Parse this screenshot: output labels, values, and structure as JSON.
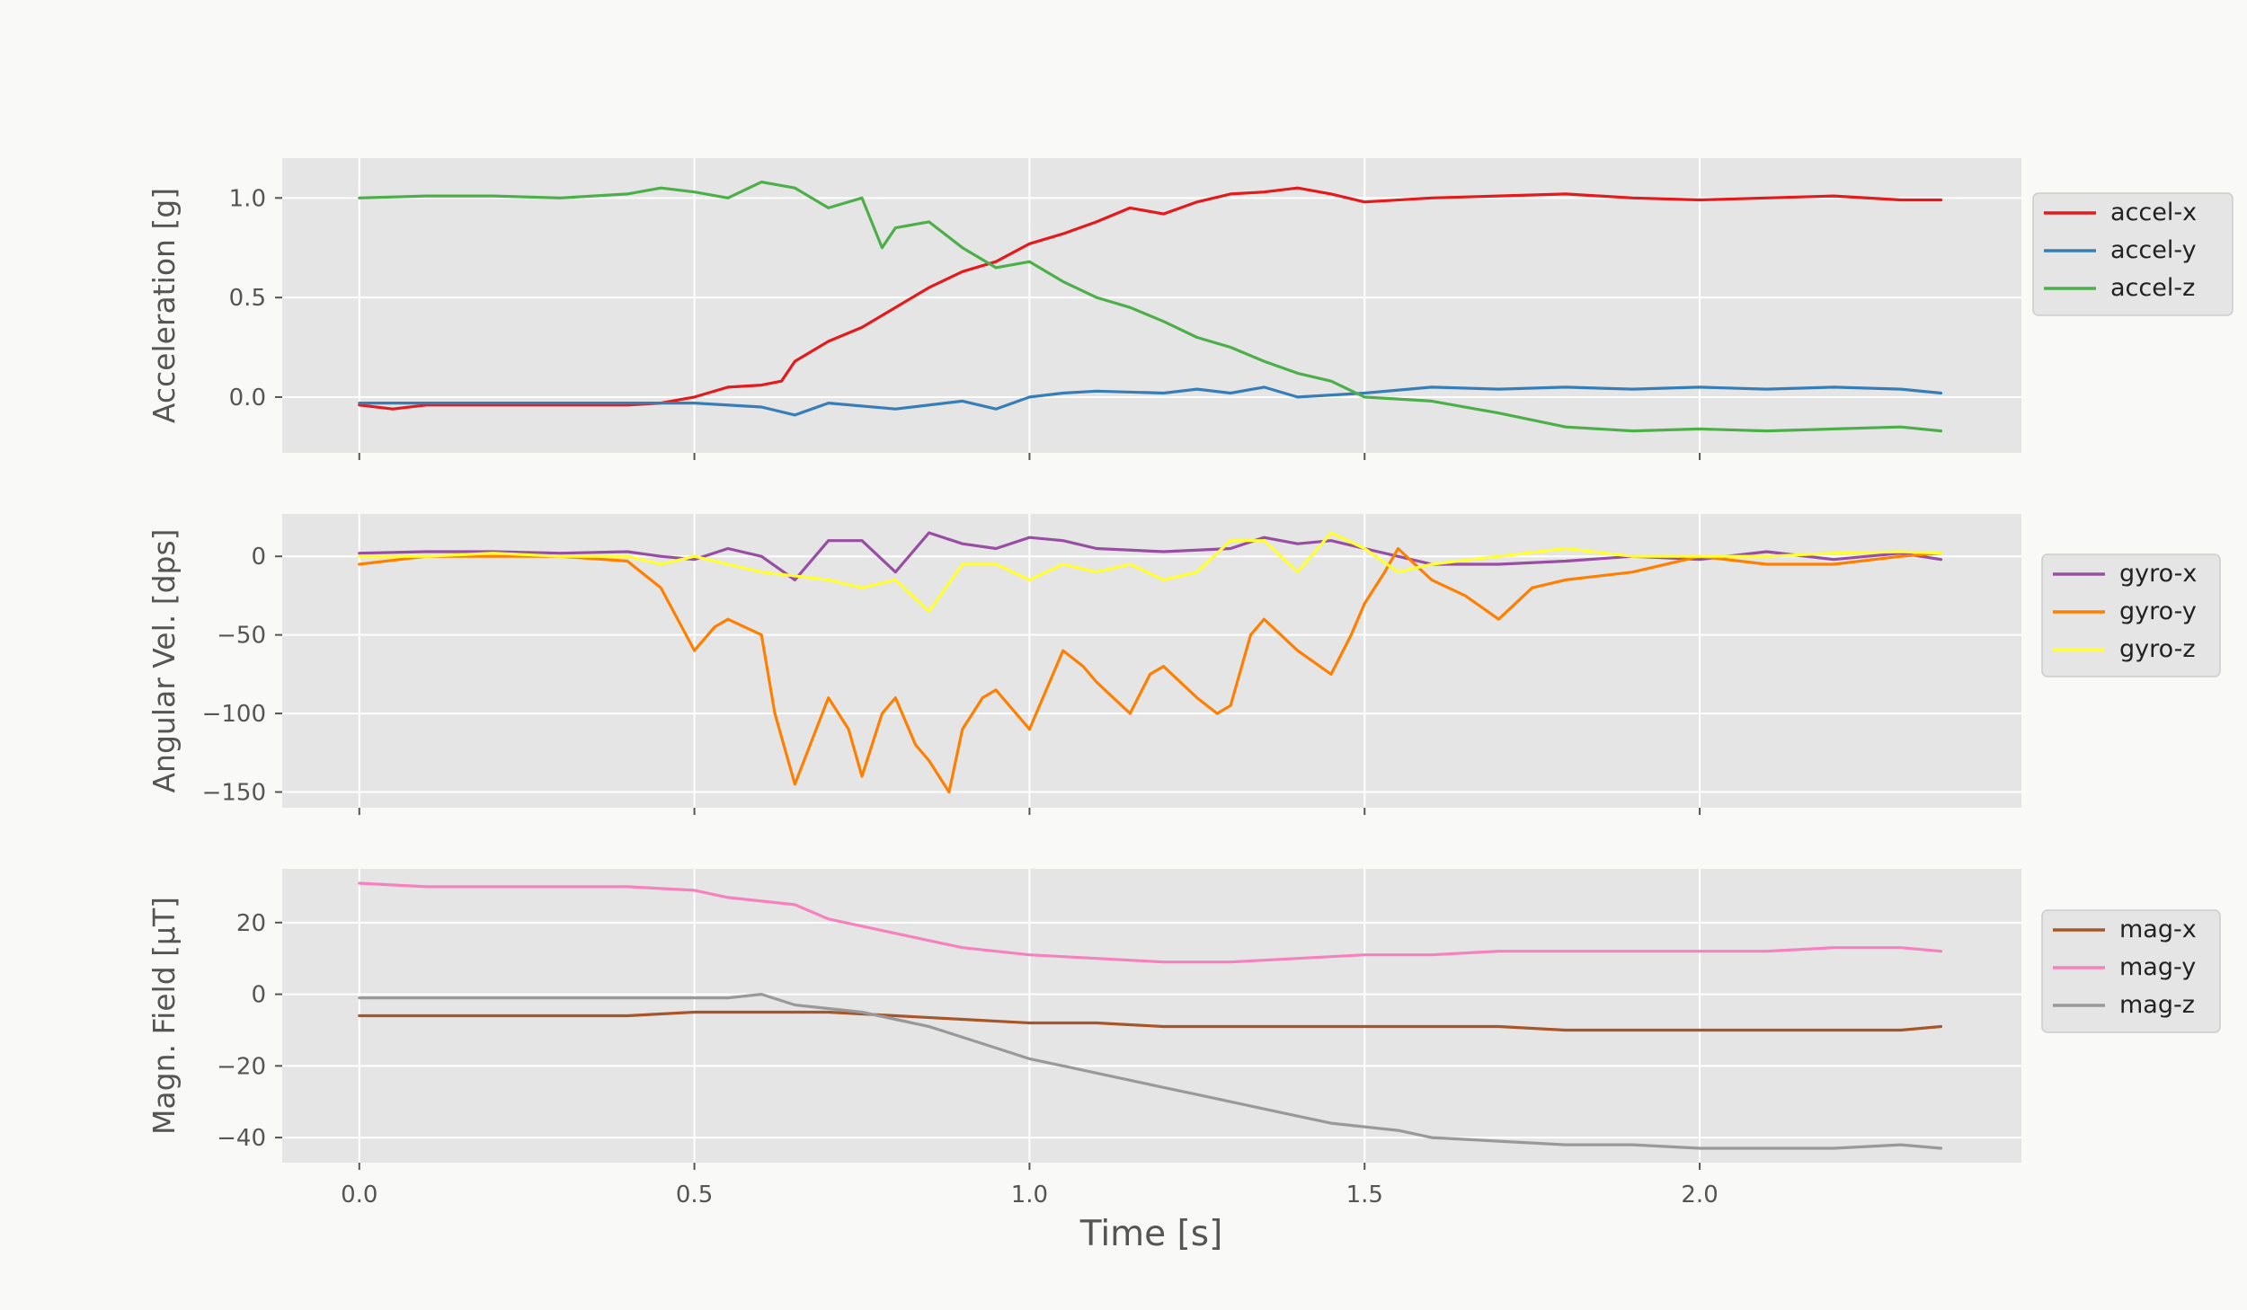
{
  "figure": {
    "background": "#f9faf8",
    "panel_background": "#e5e5e5",
    "grid_color": "#ffffff"
  },
  "chart_data": [
    {
      "type": "line",
      "ylabel": "Acceleration [g]",
      "xlim": [
        -0.115,
        2.48
      ],
      "ylim": [
        -0.28,
        1.2
      ],
      "xticks": [
        0.0,
        0.5,
        1.0,
        1.5,
        2.0
      ],
      "xtick_labels": [
        "0.0",
        "0.5",
        "1.0",
        "1.5",
        "2.0"
      ],
      "yticks": [
        0.0,
        0.5,
        1.0
      ],
      "ytick_labels": [
        "0.0",
        "0.5",
        "1.0"
      ],
      "grid": true,
      "legend_position": "right",
      "series": [
        {
          "name": "accel-x",
          "color": "#e41a1c",
          "x": [
            0.0,
            0.05,
            0.1,
            0.2,
            0.3,
            0.4,
            0.45,
            0.5,
            0.55,
            0.6,
            0.63,
            0.65,
            0.7,
            0.75,
            0.8,
            0.85,
            0.9,
            0.95,
            1.0,
            1.05,
            1.1,
            1.15,
            1.2,
            1.25,
            1.3,
            1.35,
            1.4,
            1.45,
            1.5,
            1.6,
            1.7,
            1.8,
            1.9,
            2.0,
            2.1,
            2.2,
            2.3,
            2.36
          ],
          "y": [
            -0.04,
            -0.06,
            -0.04,
            -0.04,
            -0.04,
            -0.04,
            -0.03,
            0.0,
            0.05,
            0.06,
            0.08,
            0.18,
            0.28,
            0.35,
            0.45,
            0.55,
            0.63,
            0.68,
            0.77,
            0.82,
            0.88,
            0.95,
            0.92,
            0.98,
            1.02,
            1.03,
            1.05,
            1.02,
            0.98,
            1.0,
            1.01,
            1.02,
            1.0,
            0.99,
            1.0,
            1.01,
            0.99,
            0.99
          ]
        },
        {
          "name": "accel-y",
          "color": "#377eb8",
          "x": [
            0.0,
            0.1,
            0.2,
            0.3,
            0.4,
            0.5,
            0.6,
            0.65,
            0.7,
            0.8,
            0.9,
            0.95,
            1.0,
            1.05,
            1.1,
            1.2,
            1.25,
            1.3,
            1.35,
            1.4,
            1.5,
            1.6,
            1.7,
            1.8,
            1.9,
            2.0,
            2.1,
            2.2,
            2.3,
            2.36
          ],
          "y": [
            -0.03,
            -0.03,
            -0.03,
            -0.03,
            -0.03,
            -0.03,
            -0.05,
            -0.09,
            -0.03,
            -0.06,
            -0.02,
            -0.06,
            0.0,
            0.02,
            0.03,
            0.02,
            0.04,
            0.02,
            0.05,
            0.0,
            0.02,
            0.05,
            0.04,
            0.05,
            0.04,
            0.05,
            0.04,
            0.05,
            0.04,
            0.02
          ]
        },
        {
          "name": "accel-z",
          "color": "#4daf4a",
          "x": [
            0.0,
            0.1,
            0.2,
            0.3,
            0.4,
            0.45,
            0.5,
            0.55,
            0.6,
            0.65,
            0.7,
            0.75,
            0.78,
            0.8,
            0.85,
            0.9,
            0.95,
            1.0,
            1.05,
            1.1,
            1.15,
            1.2,
            1.25,
            1.3,
            1.35,
            1.4,
            1.45,
            1.5,
            1.6,
            1.7,
            1.8,
            1.9,
            2.0,
            2.1,
            2.2,
            2.3,
            2.36
          ],
          "y": [
            1.0,
            1.01,
            1.01,
            1.0,
            1.02,
            1.05,
            1.03,
            1.0,
            1.08,
            1.05,
            0.95,
            1.0,
            0.75,
            0.85,
            0.88,
            0.75,
            0.65,
            0.68,
            0.58,
            0.5,
            0.45,
            0.38,
            0.3,
            0.25,
            0.18,
            0.12,
            0.08,
            0.0,
            -0.02,
            -0.08,
            -0.15,
            -0.17,
            -0.16,
            -0.17,
            -0.16,
            -0.15,
            -0.17
          ]
        }
      ]
    },
    {
      "type": "line",
      "ylabel": "Angular Vel. [dps]",
      "xlim": [
        -0.115,
        2.48
      ],
      "ylim": [
        -160,
        27
      ],
      "xticks": [
        0.0,
        0.5,
        1.0,
        1.5,
        2.0
      ],
      "xtick_labels": [
        "0.0",
        "0.5",
        "1.0",
        "1.5",
        "2.0"
      ],
      "yticks": [
        0,
        -50,
        -100,
        -150
      ],
      "ytick_labels": [
        "0",
        "−50",
        "−100",
        "−150"
      ],
      "grid": true,
      "legend_position": "right",
      "series": [
        {
          "name": "gyro-x",
          "color": "#984ea3",
          "x": [
            0.0,
            0.1,
            0.2,
            0.3,
            0.4,
            0.45,
            0.5,
            0.55,
            0.6,
            0.65,
            0.7,
            0.75,
            0.8,
            0.85,
            0.9,
            0.95,
            1.0,
            1.05,
            1.1,
            1.2,
            1.3,
            1.35,
            1.4,
            1.45,
            1.5,
            1.55,
            1.6,
            1.7,
            1.8,
            1.9,
            2.0,
            2.1,
            2.2,
            2.3,
            2.36
          ],
          "y": [
            2,
            3,
            3,
            2,
            3,
            0,
            -2,
            5,
            0,
            -15,
            10,
            10,
            -10,
            15,
            8,
            5,
            12,
            10,
            5,
            3,
            5,
            12,
            8,
            10,
            5,
            0,
            -5,
            -5,
            -3,
            0,
            -2,
            3,
            -2,
            2,
            -2
          ]
        },
        {
          "name": "gyro-y",
          "color": "#ff7f00",
          "x": [
            0.0,
            0.1,
            0.2,
            0.3,
            0.4,
            0.45,
            0.5,
            0.53,
            0.55,
            0.6,
            0.62,
            0.65,
            0.7,
            0.73,
            0.75,
            0.78,
            0.8,
            0.83,
            0.85,
            0.88,
            0.9,
            0.93,
            0.95,
            1.0,
            1.03,
            1.05,
            1.08,
            1.1,
            1.15,
            1.18,
            1.2,
            1.25,
            1.28,
            1.3,
            1.33,
            1.35,
            1.4,
            1.45,
            1.48,
            1.5,
            1.53,
            1.55,
            1.6,
            1.65,
            1.7,
            1.75,
            1.8,
            1.9,
            2.0,
            2.1,
            2.2,
            2.3,
            2.36
          ],
          "y": [
            -5,
            0,
            0,
            0,
            -3,
            -20,
            -60,
            -45,
            -40,
            -50,
            -100,
            -145,
            -90,
            -110,
            -140,
            -100,
            -90,
            -120,
            -130,
            -150,
            -110,
            -90,
            -85,
            -110,
            -80,
            -60,
            -70,
            -80,
            -100,
            -75,
            -70,
            -90,
            -100,
            -95,
            -50,
            -40,
            -60,
            -75,
            -50,
            -30,
            -10,
            5,
            -15,
            -25,
            -40,
            -20,
            -15,
            -10,
            0,
            -5,
            -5,
            0,
            2
          ]
        },
        {
          "name": "gyro-z",
          "color": "#ffff33",
          "x": [
            0.0,
            0.1,
            0.2,
            0.3,
            0.4,
            0.45,
            0.5,
            0.55,
            0.6,
            0.7,
            0.75,
            0.8,
            0.85,
            0.9,
            0.95,
            1.0,
            1.05,
            1.1,
            1.15,
            1.2,
            1.25,
            1.3,
            1.35,
            1.4,
            1.45,
            1.5,
            1.55,
            1.6,
            1.7,
            1.8,
            1.9,
            2.0,
            2.1,
            2.2,
            2.3,
            2.36
          ],
          "y": [
            0,
            0,
            2,
            0,
            0,
            -5,
            0,
            -5,
            -10,
            -15,
            -20,
            -15,
            -35,
            -5,
            -5,
            -15,
            -5,
            -10,
            -5,
            -15,
            -10,
            10,
            10,
            -10,
            15,
            5,
            -10,
            -5,
            0,
            5,
            0,
            0,
            0,
            2,
            3,
            2
          ]
        }
      ]
    },
    {
      "type": "line",
      "ylabel": "Magn. Field [µT]",
      "xlim": [
        -0.115,
        2.48
      ],
      "ylim": [
        -47,
        35
      ],
      "xticks": [
        0.0,
        0.5,
        1.0,
        1.5,
        2.0
      ],
      "xtick_labels": [
        "0.0",
        "0.5",
        "1.0",
        "1.5",
        "2.0"
      ],
      "yticks": [
        20,
        0,
        -20,
        -40
      ],
      "ytick_labels": [
        "20",
        "0",
        "−20",
        "−40"
      ],
      "xlabel": "Time [s]",
      "grid": true,
      "legend_position": "right",
      "series": [
        {
          "name": "mag-x",
          "color": "#a65628",
          "x": [
            0.0,
            0.1,
            0.2,
            0.3,
            0.4,
            0.5,
            0.6,
            0.7,
            0.8,
            0.9,
            1.0,
            1.1,
            1.2,
            1.3,
            1.4,
            1.5,
            1.6,
            1.7,
            1.8,
            1.9,
            2.0,
            2.1,
            2.2,
            2.3,
            2.36
          ],
          "y": [
            -6,
            -6,
            -6,
            -6,
            -6,
            -5,
            -5,
            -5,
            -6,
            -7,
            -8,
            -8,
            -9,
            -9,
            -9,
            -9,
            -9,
            -9,
            -10,
            -10,
            -10,
            -10,
            -10,
            -10,
            -9
          ]
        },
        {
          "name": "mag-y",
          "color": "#f781bf",
          "x": [
            0.0,
            0.1,
            0.2,
            0.3,
            0.4,
            0.5,
            0.55,
            0.6,
            0.65,
            0.7,
            0.75,
            0.8,
            0.85,
            0.9,
            0.95,
            1.0,
            1.1,
            1.2,
            1.3,
            1.4,
            1.5,
            1.6,
            1.7,
            1.8,
            1.9,
            2.0,
            2.1,
            2.2,
            2.3,
            2.36
          ],
          "y": [
            31,
            30,
            30,
            30,
            30,
            29,
            27,
            26,
            25,
            21,
            19,
            17,
            15,
            13,
            12,
            11,
            10,
            9,
            9,
            10,
            11,
            11,
            12,
            12,
            12,
            12,
            12,
            13,
            13,
            12
          ]
        },
        {
          "name": "mag-z",
          "color": "#999999",
          "x": [
            0.0,
            0.1,
            0.2,
            0.3,
            0.4,
            0.5,
            0.55,
            0.6,
            0.65,
            0.7,
            0.75,
            0.8,
            0.85,
            0.9,
            0.95,
            1.0,
            1.05,
            1.1,
            1.15,
            1.2,
            1.25,
            1.3,
            1.35,
            1.4,
            1.45,
            1.5,
            1.55,
            1.6,
            1.7,
            1.8,
            1.9,
            2.0,
            2.1,
            2.2,
            2.3,
            2.36
          ],
          "y": [
            -1,
            -1,
            -1,
            -1,
            -1,
            -1,
            -1,
            0,
            -3,
            -4,
            -5,
            -7,
            -9,
            -12,
            -15,
            -18,
            -20,
            -22,
            -24,
            -26,
            -28,
            -30,
            -32,
            -34,
            -36,
            -37,
            -38,
            -40,
            -41,
            -42,
            -42,
            -43,
            -43,
            -43,
            -42,
            -43
          ]
        }
      ]
    }
  ]
}
